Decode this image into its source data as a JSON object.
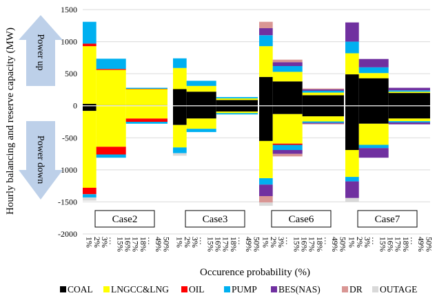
{
  "chart_data": {
    "type": "bar",
    "subtype": "stacked-bar-up-down",
    "ylabel": "Hourly balancing and reserve capacity (MW)",
    "xlabel": "Occurence probability (%)",
    "ylim": [
      -2000,
      1500
    ],
    "yticks": [
      1500,
      1000,
      500,
      0,
      -500,
      -1000,
      -1500,
      -2000
    ],
    "grid": true,
    "legend_position": "bottom",
    "arrows": {
      "up": "Power up",
      "down": "Power down"
    },
    "x_tick_labels": [
      "1%",
      "2%",
      "3%",
      "…",
      "15%",
      "16%",
      "17%",
      "18%",
      "…",
      "49%",
      "50%"
    ],
    "series": [
      {
        "name": "COAL",
        "color": "#000000"
      },
      {
        "name": "LNGCC&LNG",
        "color": "#ffff00"
      },
      {
        "name": "OIL",
        "color": "#ff0000"
      },
      {
        "name": "PUMP",
        "color": "#00b0f0"
      },
      {
        "name": "BES(NAS)",
        "color": "#7030a0"
      },
      {
        "name": "DR",
        "color": "#d99694"
      },
      {
        "name": "OUTAGE",
        "color": "#d9d9d9"
      }
    ],
    "cases": [
      {
        "name": "Case2",
        "segments": [
          {
            "probability": [
              0,
              2
            ],
            "up": [
              30,
              900,
              40,
              340,
              0,
              0,
              0
            ],
            "down": [
              80,
              1200,
              100,
              50,
              0,
              0,
              50
            ]
          },
          {
            "probability": [
              2,
              16
            ],
            "up": [
              10,
              550,
              15,
              160,
              0,
              0,
              0
            ],
            "down": [
              0,
              640,
              120,
              50,
              0,
              0,
              0
            ]
          },
          {
            "probability": [
              16,
              50
            ],
            "up": [
              10,
              250,
              5,
              15,
              0,
              0,
              0
            ],
            "down": [
              0,
              200,
              50,
              30,
              0,
              0,
              0
            ]
          }
        ]
      },
      {
        "name": "Case3",
        "segments": [
          {
            "probability": [
              0,
              2
            ],
            "up": [
              260,
              330,
              0,
              150,
              0,
              0,
              0
            ],
            "down": [
              300,
              350,
              0,
              90,
              0,
              0,
              40
            ]
          },
          {
            "probability": [
              2,
              16
            ],
            "up": [
              220,
              90,
              0,
              80,
              0,
              0,
              0
            ],
            "down": [
              200,
              160,
              0,
              50,
              0,
              0,
              0
            ]
          },
          {
            "probability": [
              16,
              50
            ],
            "up": [
              90,
              25,
              0,
              20,
              0,
              0,
              0
            ],
            "down": [
              90,
              25,
              0,
              20,
              0,
              0,
              0
            ]
          }
        ]
      },
      {
        "name": "Case6",
        "segments": [
          {
            "probability": [
              0,
              2
            ],
            "up": [
              450,
              480,
              0,
              170,
              110,
              100,
              0
            ],
            "down": [
              550,
              580,
              0,
              100,
              180,
              100,
              50
            ]
          },
          {
            "probability": [
              2,
              16
            ],
            "up": [
              380,
              150,
              0,
              90,
              60,
              40,
              0
            ],
            "down": [
              130,
              460,
              20,
              80,
              60,
              40,
              0
            ]
          },
          {
            "probability": [
              16,
              50
            ],
            "up": [
              165,
              40,
              0,
              30,
              20,
              15,
              0
            ],
            "down": [
              165,
              80,
              0,
              20,
              15,
              10,
              0
            ]
          }
        ]
      },
      {
        "name": "Case7",
        "segments": [
          {
            "probability": [
              0,
              2
            ],
            "up": [
              490,
              330,
              0,
              180,
              300,
              0,
              0
            ],
            "down": [
              690,
              420,
              0,
              70,
              260,
              0,
              60
            ]
          },
          {
            "probability": [
              2,
              16
            ],
            "up": [
              430,
              80,
              0,
              90,
              130,
              0,
              0
            ],
            "down": [
              280,
              330,
              0,
              50,
              150,
              0,
              0
            ]
          },
          {
            "probability": [
              16,
              50
            ],
            "up": [
              200,
              20,
              0,
              20,
              40,
              0,
              0
            ],
            "down": [
              200,
              40,
              0,
              20,
              30,
              0,
              0
            ]
          }
        ]
      }
    ]
  }
}
